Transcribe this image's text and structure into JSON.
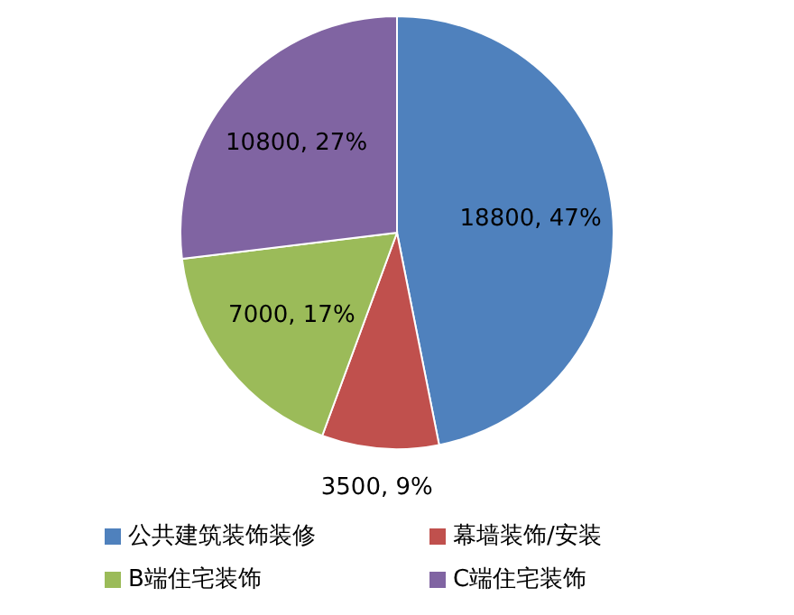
{
  "chart_data": {
    "type": "pie",
    "categories": [
      "公共建筑装饰装修",
      "幕墙装饰/安装",
      "B端住宅装饰",
      "C端住宅装饰"
    ],
    "values": [
      18800,
      3500,
      7000,
      10800
    ],
    "colors": [
      "#4f81bd",
      "#c0504d",
      "#9bbb59",
      "#8064a2"
    ],
    "value_labels": [
      "18800, 47%",
      "3500, 9%",
      "7000, 17%",
      "10800, 27%"
    ],
    "legend": "bottom"
  }
}
